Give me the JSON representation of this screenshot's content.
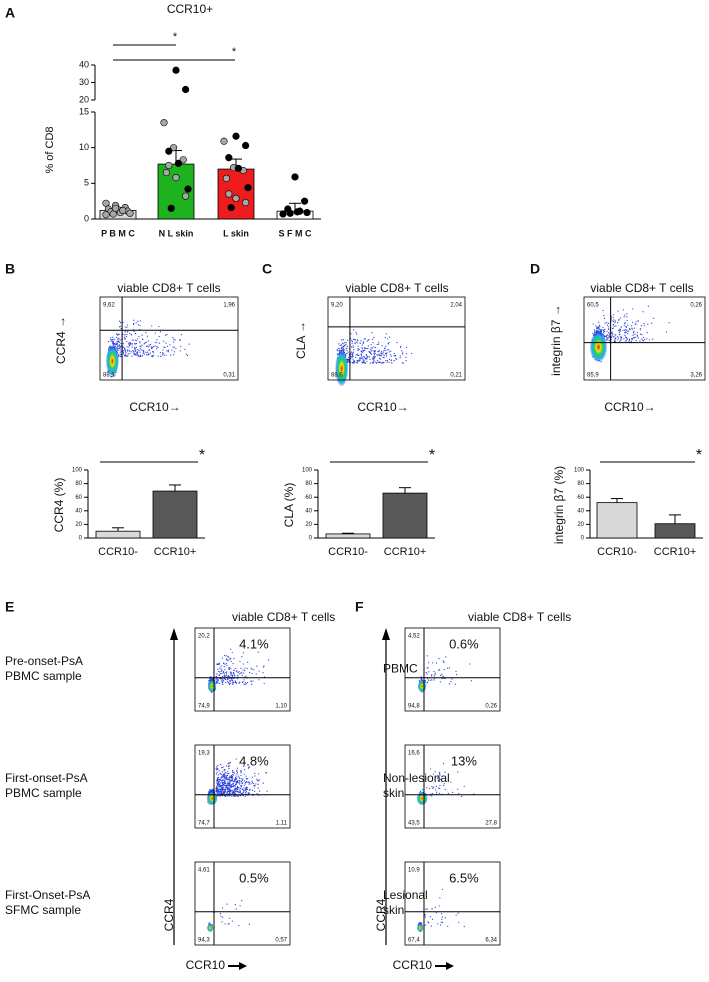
{
  "chart_data": [
    {
      "type": "bar",
      "label": "A",
      "title": "CCR10+",
      "ylabel": "% of CD8",
      "categories": [
        "P B M C",
        "N L skin",
        "L skin",
        "S F M C"
      ],
      "values": [
        1.2,
        7.7,
        7.0,
        1.1
      ],
      "errors": [
        0.4,
        1.9,
        1.4,
        1.1
      ],
      "colors": [
        "#d9d9d9",
        "#1fb21f",
        "#ee1c1c",
        "#ffffff"
      ],
      "ylim": [
        0,
        15
      ],
      "yticks": [
        0,
        5,
        10,
        15
      ],
      "y_break_lim": [
        20,
        40
      ],
      "y_break_ticks": [
        20,
        30,
        40
      ],
      "dot_series": [
        {
          "color": "#a6a6a6",
          "values": [
            [
              2.2,
              1.9,
              1.6,
              1.4,
              1.3,
              1.1,
              1.0,
              0.9,
              0.8,
              0.7,
              1.2,
              0.6,
              1.5
            ],
            [
              13.5,
              10,
              8.3,
              6.5,
              5.8,
              3.2,
              7.5
            ],
            [
              10.9,
              7.2,
              6.8,
              5.7,
              2.9,
              2.3,
              3.5
            ],
            []
          ]
        },
        {
          "color": "#000000",
          "values": [
            [],
            [
              37,
              26,
              9.5,
              7.8,
              4.2,
              1.5
            ],
            [
              11.6,
              10.3,
              8.6,
              7.1,
              4.4,
              1.6
            ],
            [
              5.9,
              2.5,
              1.4,
              1.0,
              0.9,
              0.8,
              1.1,
              0.7
            ]
          ]
        }
      ],
      "annotations": [
        "*",
        "*"
      ]
    },
    {
      "type": "flow",
      "label": "B",
      "title": "viable CD8+ T cells",
      "xlabel": "CCR10→",
      "ylabel": "CCR4 →",
      "quadrants": {
        "ul": {
          "value": 9.62,
          "label": "9,62"
        },
        "ur": {
          "value": 1.96,
          "label": "1,96"
        },
        "ll": {
          "value": 88.1,
          "label": "88,1"
        },
        "lr": {
          "value": 0.31,
          "label": "0,31"
        }
      }
    },
    {
      "type": "bar",
      "ylabel": "CCR4 (%)",
      "categories": [
        "CCR10-",
        "CCR10+"
      ],
      "values": [
        10,
        69
      ],
      "errors": [
        5,
        9
      ],
      "colors": [
        "#d9d9d9",
        "#595959"
      ],
      "ylim": [
        0,
        100
      ],
      "yticks": [
        0,
        20,
        40,
        60,
        80,
        100
      ],
      "annotations": [
        "*"
      ]
    },
    {
      "type": "flow",
      "label": "C",
      "title": "viable CD8+ T cells",
      "xlabel": "CCR10→",
      "ylabel": "CLA →",
      "quadrants": {
        "ul": {
          "value": 9.2,
          "label": "9,20"
        },
        "ur": {
          "value": 2.04,
          "label": "2,04"
        },
        "ll": {
          "value": 88.6,
          "label": "88,6"
        },
        "lr": {
          "value": 0.21,
          "label": "0,21"
        }
      }
    },
    {
      "type": "bar",
      "ylabel": "CLA (%)",
      "categories": [
        "CCR10-",
        "CCR10+"
      ],
      "values": [
        6,
        66
      ],
      "errors": [
        1,
        8
      ],
      "colors": [
        "#d9d9d9",
        "#595959"
      ],
      "ylim": [
        0,
        100
      ],
      "yticks": [
        0,
        20,
        40,
        60,
        80,
        100
      ],
      "annotations": [
        "*"
      ]
    },
    {
      "type": "flow",
      "label": "D",
      "title": "viable CD8+ T cells",
      "xlabel": "CCR10→",
      "ylabel": "integrin β7 →",
      "quadrants": {
        "ul": {
          "value": 60.5,
          "label": "60,5"
        },
        "ur": {
          "value": 0.26,
          "label": "0,26"
        },
        "ll": {
          "value": 85.9,
          "label": "85,9"
        },
        "lr": {
          "value": 3.26,
          "label": "3,26"
        }
      }
    },
    {
      "type": "bar",
      "ylabel": "integrin β7 (%)",
      "categories": [
        "CCR10-",
        "CCR10+"
      ],
      "values": [
        52,
        21
      ],
      "errors": [
        6,
        13
      ],
      "colors": [
        "#d9d9d9",
        "#595959"
      ],
      "ylim": [
        0,
        100
      ],
      "yticks": [
        0,
        20,
        40,
        60,
        80,
        100
      ],
      "annotations": [
        "*"
      ]
    },
    {
      "type": "flow_panel",
      "label": "E",
      "title": "viable CD8+ T cells",
      "xlabel": "CCR10",
      "ylabel": "CCR4",
      "plots": [
        {
          "row_label": [
            "Pre-onset-PsA",
            "PBMC sample"
          ],
          "percent": {
            "value": 4.1,
            "label": "4.1%"
          },
          "quadrants": {
            "ul": {
              "value": 20.2,
              "label": "20,2"
            },
            "ll": {
              "value": 74.9,
              "label": "74,9"
            },
            "lr": {
              "value": 1.1,
              "label": "1,10"
            }
          }
        },
        {
          "row_label": [
            "First-onset-PsA",
            "PBMC sample"
          ],
          "percent": {
            "value": 4.8,
            "label": "4.8%"
          },
          "quadrants": {
            "ul": {
              "value": 19.3,
              "label": "19,3"
            },
            "ll": {
              "value": 74.7,
              "label": "74,7"
            },
            "lr": {
              "value": 1.11,
              "label": "1,11"
            }
          }
        },
        {
          "row_label": [
            "First-Onset-PsA",
            "SFMC sample"
          ],
          "percent": {
            "value": 0.5,
            "label": "0.5%"
          },
          "quadrants": {
            "ul": {
              "value": 4.61,
              "label": "4,61"
            },
            "ll": {
              "value": 94.3,
              "label": "94,3"
            },
            "lr": {
              "value": 0.57,
              "label": "0,57"
            }
          }
        }
      ]
    },
    {
      "type": "flow_panel",
      "label": "F",
      "title": "viable CD8+ T cells",
      "xlabel": "CCR10",
      "ylabel": "CCR4",
      "plots": [
        {
          "row_label": [
            "PBMC"
          ],
          "percent": {
            "value": 0.6,
            "label": "0.6%"
          },
          "quadrants": {
            "ul": {
              "value": 4.52,
              "label": "4,52"
            },
            "ll": {
              "value": 94.8,
              "label": "94,8"
            },
            "lr": {
              "value": 0.26,
              "label": "0,26"
            }
          }
        },
        {
          "row_label": [
            "Non-lesional",
            "skin"
          ],
          "percent": {
            "value": 13,
            "label": "13%"
          },
          "quadrants": {
            "ul": {
              "value": 16.6,
              "label": "16,6"
            },
            "ll": {
              "value": 43.5,
              "label": "43,5"
            },
            "lr": {
              "value": 27.8,
              "label": "27,8"
            }
          }
        },
        {
          "row_label": [
            "Lesional",
            "skin"
          ],
          "percent": {
            "value": 6.5,
            "label": "6.5%"
          },
          "quadrants": {
            "ul": {
              "value": 10.9,
              "label": "10,9"
            },
            "ll": {
              "value": 67.4,
              "label": "67,4"
            },
            "lr": {
              "value": 6.34,
              "label": "6,34"
            }
          }
        }
      ]
    }
  ]
}
